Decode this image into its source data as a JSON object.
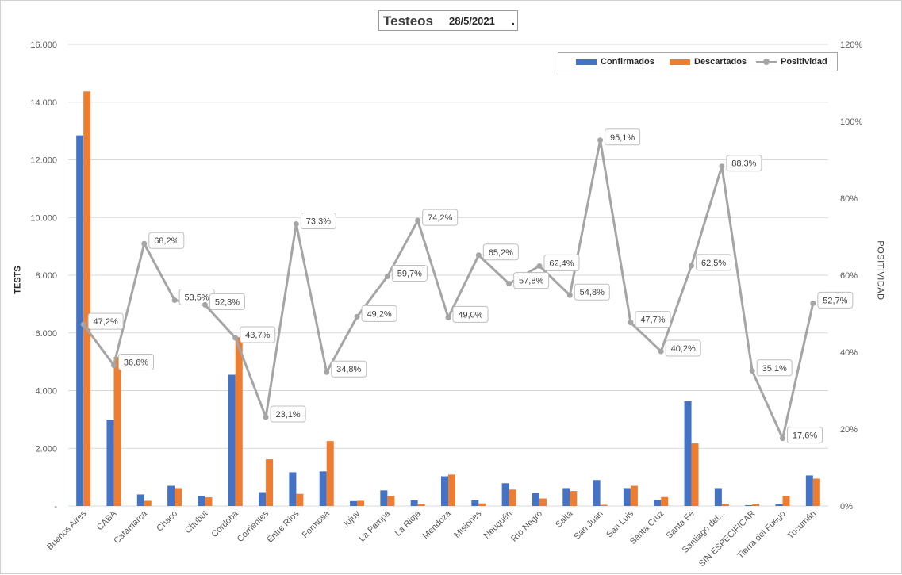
{
  "header": {
    "title": "Testeos",
    "date": "28/5/2021",
    "dot": "."
  },
  "legend": {
    "confirmados": "Confirmados",
    "descartados": "Descartados",
    "positividad": "Positividad"
  },
  "axes": {
    "y_left_label": "TESTS",
    "y_right_label": "POSITIVIDAD"
  },
  "colors": {
    "confirmados": "#4472c4",
    "descartados": "#ed7d31",
    "positividad": "#a5a5a5",
    "grid": "#d9d9d9"
  },
  "chart_data": {
    "type": "bar",
    "title": "Testeos",
    "categories": [
      "Buenos Aires",
      "CABA",
      "Catamarca",
      "Chaco",
      "Chubut",
      "Córdoba",
      "Corrientes",
      "Entre Ríos",
      "Formosa",
      "Jujuy",
      "La Pampa",
      "La Rioja",
      "Mendoza",
      "Misiones",
      "Neuquén",
      "Río Negro",
      "Salta",
      "San Juan",
      "San Luis",
      "Santa Cruz",
      "Santa Fe",
      "Santiago del...",
      "SIN ESPECIFICAR",
      "Tierra del Fuego",
      "Tucumán"
    ],
    "series": [
      {
        "name": "Confirmados",
        "type": "bar",
        "axis": "left",
        "values": [
          12850,
          2990,
          400,
          700,
          350,
          4550,
          480,
          1170,
          1200,
          170,
          540,
          200,
          1030,
          200,
          790,
          450,
          620,
          900,
          620,
          210,
          3630,
          620,
          30,
          60,
          1060
        ]
      },
      {
        "name": "Descartados",
        "type": "bar",
        "axis": "left",
        "values": [
          14370,
          5170,
          180,
          620,
          300,
          5850,
          1620,
          420,
          2250,
          180,
          350,
          70,
          1090,
          90,
          570,
          260,
          520,
          40,
          700,
          310,
          2170,
          80,
          80,
          350,
          950
        ]
      },
      {
        "name": "Positividad",
        "type": "line",
        "axis": "right",
        "values": [
          47.2,
          36.6,
          68.2,
          53.5,
          52.3,
          43.7,
          23.1,
          73.3,
          34.8,
          49.2,
          59.7,
          74.2,
          49.0,
          65.2,
          57.8,
          62.4,
          54.8,
          95.1,
          47.7,
          40.2,
          62.5,
          88.3,
          35.1,
          17.6,
          52.7
        ],
        "labels": [
          "47,2%",
          "36,6%",
          "68,2%",
          "53,5%",
          "52,3%",
          "43,7%",
          "23,1%",
          "73,3%",
          "34,8%",
          "49,2%",
          "59,7%",
          "74,2%",
          "49,0%",
          "65,2%",
          "57,8%",
          "62,4%",
          "54,8%",
          "95,1%",
          "47,7%",
          "40,2%",
          "62,5%",
          "88,3%",
          "35,1%",
          "17,6%",
          "52,7%"
        ]
      }
    ],
    "ylabel": "TESTS",
    "y2label": "POSITIVIDAD",
    "ylim": [
      0,
      16000
    ],
    "y2lim": [
      0,
      120
    ],
    "y_ticks": [
      0,
      2000,
      4000,
      6000,
      8000,
      10000,
      12000,
      14000,
      16000
    ],
    "y_tick_labels": [
      "-",
      "2.000",
      "4.000",
      "6.000",
      "8.000",
      "10.000",
      "12.000",
      "14.000",
      "16.000"
    ],
    "y2_ticks": [
      0,
      20,
      40,
      60,
      80,
      100,
      120
    ],
    "y2_tick_labels": [
      "0%",
      "20%",
      "40%",
      "60%",
      "80%",
      "100%",
      "120%"
    ],
    "grid": true,
    "legend_position": "top-right"
  }
}
